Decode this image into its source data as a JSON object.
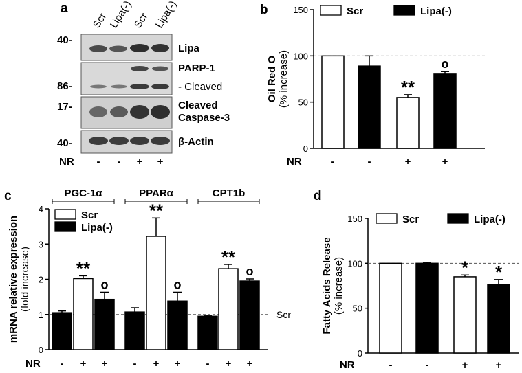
{
  "panel_a": {
    "letter": "a",
    "lanes": [
      "Scr",
      "Lipa(-)",
      "Scr",
      "Lipa(-)"
    ],
    "treatment_label": "NR",
    "treatment": [
      "-",
      "-",
      "+",
      "+"
    ],
    "blots": [
      {
        "mw": "40-",
        "label1": "Lipa",
        "label2": ""
      },
      {
        "mw": "86-",
        "label1": "PARP-1",
        "label2": "- Cleaved"
      },
      {
        "mw": "17-",
        "label1": "Cleaved",
        "label2": "Caspase-3"
      },
      {
        "mw": "40-",
        "label1": "β-Actin",
        "label2": ""
      }
    ]
  },
  "chart_data": [
    {
      "panel": "b",
      "type": "bar",
      "ylabel": "Oil Red O",
      "ylabel2": "(% increase)",
      "ylim": [
        0,
        150
      ],
      "yticks": [
        "0",
        "50",
        "100",
        "150"
      ],
      "reference_line": 100,
      "legend": [
        "Scr",
        "Lipa(-)"
      ],
      "treatment_label": "NR",
      "treatment": [
        "-",
        "-",
        "+",
        "+"
      ],
      "bars": [
        {
          "series": "Scr",
          "value": 100,
          "err": 0,
          "sig": ""
        },
        {
          "series": "Lipa(-)",
          "value": 89,
          "err": 11,
          "sig": ""
        },
        {
          "series": "Scr",
          "value": 55,
          "err": 3,
          "sig": "**"
        },
        {
          "series": "Lipa(-)",
          "value": 81,
          "err": 2,
          "sig": "o"
        }
      ]
    },
    {
      "panel": "c",
      "type": "bar",
      "ylabel": "mRNA relative expression",
      "ylabel2": "(fold increase)",
      "ylim": [
        0,
        4
      ],
      "yticks": [
        "0",
        "1",
        "2",
        "3",
        "4"
      ],
      "reference_line": 1,
      "reference_label": "Scr",
      "legend": [
        "Scr",
        "Lipa(-)"
      ],
      "genes": [
        "PGC-1α",
        "PPARα",
        "CPT1b"
      ],
      "treatment_label": "NR",
      "treatment": [
        "-",
        "+",
        "+",
        "-",
        "+",
        "+",
        "-",
        "+",
        "+"
      ],
      "bars": [
        {
          "series": "Lipa(-)",
          "value": 1.05,
          "err": 0.05,
          "sig": ""
        },
        {
          "series": "Scr",
          "value": 2.02,
          "err": 0.08,
          "sig": "**"
        },
        {
          "series": "Lipa(-)",
          "value": 1.43,
          "err": 0.2,
          "sig": "o"
        },
        {
          "series": "Lipa(-)",
          "value": 1.07,
          "err": 0.12,
          "sig": ""
        },
        {
          "series": "Scr",
          "value": 3.22,
          "err": 0.52,
          "sig": "**"
        },
        {
          "series": "Lipa(-)",
          "value": 1.38,
          "err": 0.25,
          "sig": "o"
        },
        {
          "series": "Lipa(-)",
          "value": 0.95,
          "err": 0.03,
          "sig": ""
        },
        {
          "series": "Scr",
          "value": 2.3,
          "err": 0.12,
          "sig": "**"
        },
        {
          "series": "Lipa(-)",
          "value": 1.95,
          "err": 0.06,
          "sig": "o"
        }
      ]
    },
    {
      "panel": "d",
      "type": "bar",
      "ylabel": "Fatty Acids Release",
      "ylabel2": "(% increase)",
      "ylim": [
        0,
        150
      ],
      "yticks": [
        "0",
        "50",
        "100",
        "150"
      ],
      "reference_line": 100,
      "legend": [
        "Scr",
        "Lipa(-)"
      ],
      "treatment_label": "NR",
      "treatment": [
        "-",
        "-",
        "+",
        "+"
      ],
      "bars": [
        {
          "series": "Scr",
          "value": 100,
          "err": 0,
          "sig": ""
        },
        {
          "series": "Lipa(-)",
          "value": 100,
          "err": 1,
          "sig": ""
        },
        {
          "series": "Scr",
          "value": 85,
          "err": 2,
          "sig": "*"
        },
        {
          "series": "Lipa(-)",
          "value": 76,
          "err": 6,
          "sig": "*"
        }
      ]
    }
  ],
  "panel_letters": [
    "b",
    "c",
    "d"
  ]
}
